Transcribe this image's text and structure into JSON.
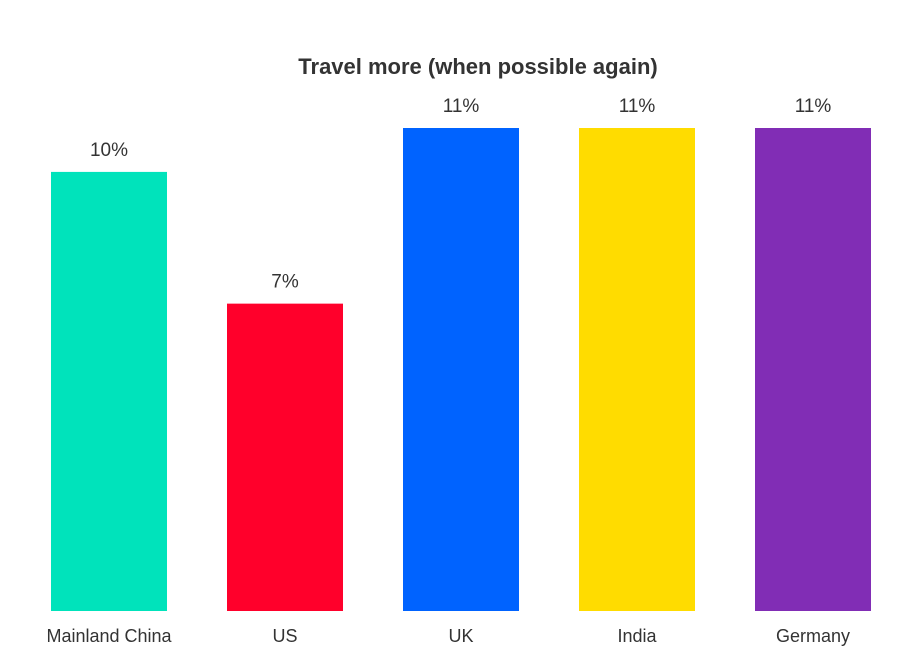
{
  "chart_data": {
    "type": "bar",
    "title": "Travel more (when possible again)",
    "categories": [
      "Mainland China",
      "US",
      "UK",
      "India",
      "Germany"
    ],
    "values": [
      10,
      7,
      11,
      11,
      11
    ],
    "value_labels": [
      "10%",
      "7%",
      "11%",
      "11%",
      "11%"
    ],
    "colors": [
      "#00e3bb",
      "#ff002b",
      "#0063ff",
      "#ffdc00",
      "#812db5"
    ]
  }
}
